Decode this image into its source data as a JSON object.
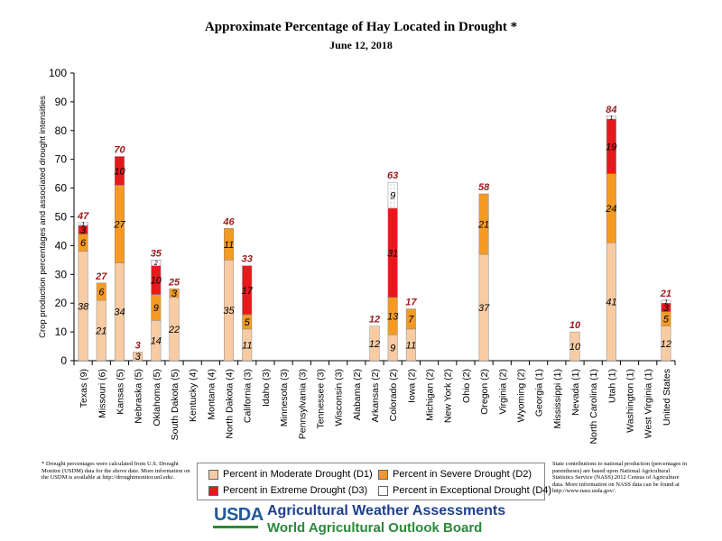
{
  "chart_data": {
    "type": "bar",
    "stacked": true,
    "title": "Approximate Percentage of Hay Located in Drought *",
    "subtitle": "June 12, 2018",
    "ylabel": "Crop production percentages and associated drought intensities",
    "ylim": [
      0,
      100
    ],
    "yticks": [
      0,
      10,
      20,
      30,
      40,
      50,
      60,
      70,
      80,
      90,
      100
    ],
    "grid": false,
    "legend_position": "bottom",
    "categories": [
      "Texas (9)",
      "Missouri (6)",
      "Kansas (5)",
      "Nebraska (5)",
      "Oklahoma (5)",
      "South Dakota (5)",
      "Kentucky (4)",
      "Montana (4)",
      "North Dakota (4)",
      "California (3)",
      "Idaho (3)",
      "Minnesota (3)",
      "Pennsylvania (3)",
      "Tennessee (3)",
      "Wisconsin (3)",
      "Alabama (2)",
      "Arkansas (2)",
      "Colorado (2)",
      "Iowa (2)",
      "Michigan (2)",
      "New York (2)",
      "Ohio (2)",
      "Oregon (2)",
      "Virginia (2)",
      "Wyoming (2)",
      "Georgia (1)",
      "Mississippi (1)",
      "Nevada (1)",
      "North Carolina (1)",
      "Utah (1)",
      "Washington (1)",
      "West Virginia (1)",
      "United States"
    ],
    "series": [
      {
        "name": "Percent in Moderate Drought (D1)",
        "color": "#f8cba2",
        "values": [
          38,
          21,
          34,
          3,
          14,
          22,
          0,
          0,
          35,
          11,
          0,
          0,
          0,
          0,
          0,
          0,
          12,
          9,
          11,
          0,
          0,
          0,
          37,
          0,
          0,
          0,
          0,
          10,
          0,
          41,
          0,
          0,
          12
        ]
      },
      {
        "name": "Percent in Severe Drought (D2)",
        "color": "#f59a23",
        "values": [
          6,
          6,
          27,
          0,
          9,
          3,
          0,
          0,
          11,
          5,
          0,
          0,
          0,
          0,
          0,
          0,
          0,
          13,
          7,
          0,
          0,
          0,
          21,
          0,
          0,
          0,
          0,
          0,
          0,
          24,
          0,
          0,
          5
        ]
      },
      {
        "name": "Percent in Extreme Drought (D3)",
        "color": "#e41a1c",
        "values": [
          3,
          0,
          10,
          0,
          10,
          0,
          0,
          0,
          0,
          17,
          0,
          0,
          0,
          0,
          0,
          0,
          0,
          31,
          0,
          0,
          0,
          0,
          0,
          0,
          0,
          0,
          0,
          0,
          0,
          19,
          0,
          0,
          3
        ]
      },
      {
        "name": "Percent in Exceptional Drought (D4)",
        "color": "#ffffff",
        "values": [
          1,
          0,
          0,
          0,
          2,
          0,
          0,
          0,
          0,
          0,
          0,
          0,
          0,
          0,
          0,
          0,
          0,
          9,
          0,
          0,
          0,
          0,
          0,
          0,
          0,
          0,
          0,
          0,
          0,
          1,
          0,
          0,
          1
        ]
      }
    ],
    "totals": [
      47,
      27,
      70,
      3,
      35,
      25,
      null,
      null,
      46,
      33,
      null,
      null,
      null,
      null,
      null,
      null,
      12,
      63,
      17,
      null,
      null,
      null,
      58,
      null,
      null,
      null,
      null,
      10,
      null,
      84,
      null,
      null,
      21
    ],
    "total_label_color": "#9b1b1b"
  },
  "footnote": "* Drought percentages were calculated from U.S. Drought Monitor (USDM) data for the above date. More information on the USDM is available at http://droughtmonitor.unl.edu/.",
  "credits": "State contributions to national production (percentages in parentheses) are based upon National Agricultural Statistics Service (NASS) 2012 Census of Agriculture data. More information on NASS data can be found at http://www.nass.usda.gov/.",
  "logo": {
    "text": "USDA",
    "org_line1": "Agricultural Weather Assessments",
    "org_line2": "World Agricultural Outlook Board",
    "blue": "#1f5a9a",
    "green": "#2a8a3a"
  }
}
